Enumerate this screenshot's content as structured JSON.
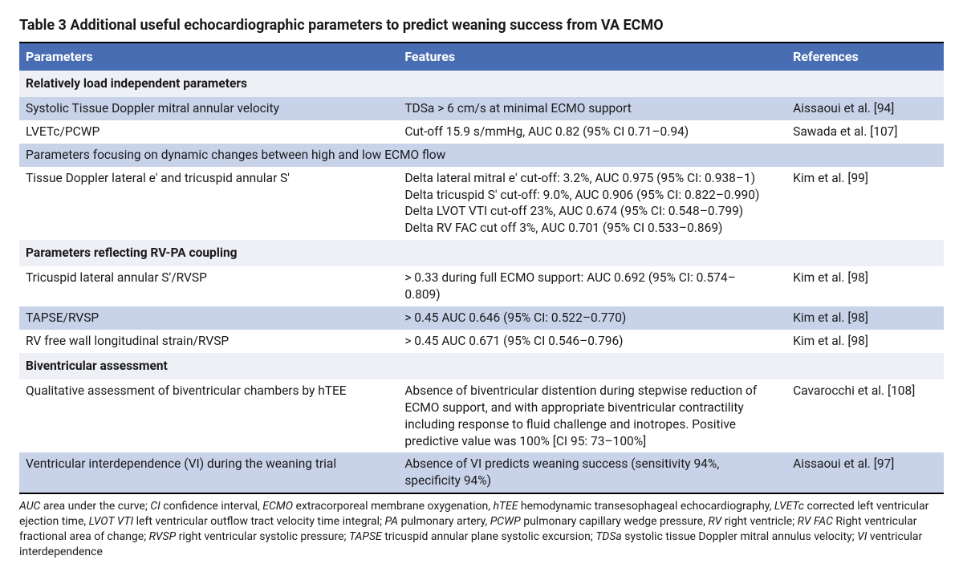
{
  "title": "Table 3  Additional useful echocardiographic parameters to predict weaning success from VA ECMO",
  "columns": {
    "parameters": "Parameters",
    "features": "Features",
    "references": "References"
  },
  "colors": {
    "header_bg": "#486db3",
    "header_fg": "#ffffff",
    "shade_bg": "#c8d3ea",
    "section_bg": "#eef0f6",
    "rule": "#000000",
    "text": "#1a1a1a"
  },
  "typography": {
    "title_fontsize_pt": 14,
    "header_fontsize_pt": 12,
    "body_fontsize_pt": 12,
    "footnote_fontsize_pt": 11,
    "title_weight": 700,
    "section_weight": 700,
    "body_weight": 400
  },
  "col_widths_pct": [
    41,
    42,
    17
  ],
  "sections": {
    "s1": "Relatively load independent parameters",
    "s1_sub": "Parameters focusing on dynamic changes between high and low ECMO flow",
    "s2": "Parameters reflecting RV-PA coupling",
    "s3": "Biventricular assessment"
  },
  "rows": {
    "r1": {
      "param": "Systolic Tissue Doppler mitral annular velocity",
      "feat": "TDSa > 6 cm/s at minimal ECMO support",
      "ref": "Aissaoui et al. [94]"
    },
    "r2": {
      "param": "LVETc/PCWP",
      "feat": "Cut-off 15.9 s/mmHg, AUC 0.82 (95% CI 0.71–0.94)",
      "ref": "Sawada et al. [107]"
    },
    "r3": {
      "param": "Tissue Doppler lateral e′ and tricuspid annular S′",
      "feat1": "Delta lateral mitral e′ cut-off: 3.2%, AUC 0.975 (95% CI: 0.938–1)",
      "feat2": "Delta tricuspid S′ cut-off: 9.0%, AUC 0.906 (95% CI: 0.822–0.990)",
      "feat3": "Delta LVOT VTI cut-off 23%, AUC 0.674 (95% CI: 0.548–0.799)",
      "feat4": "Delta RV FAC cut off 3%, AUC 0.701 (95% CI 0.533–0.869)",
      "ref": "Kim et al. [99]"
    },
    "r4": {
      "param": "Tricuspid lateral annular S′/RVSP",
      "feat": "> 0.33 during full ECMO support: AUC 0.692 (95% CI: 0.574–0.809)",
      "ref": "Kim et al. [98]"
    },
    "r5": {
      "param": "TAPSE/RVSP",
      "feat": "> 0.45 AUC 0.646 (95% CI: 0.522–0.770)",
      "ref": "Kim et al. [98]"
    },
    "r6": {
      "param": "RV free wall longitudinal strain/RVSP",
      "feat": "> 0.45 AUC 0.671 (95% CI 0.546–0.796)",
      "ref": "Kim et al. [98]"
    },
    "r7": {
      "param": "Qualitative assessment of biventricular chambers by hTEE",
      "feat": "Absence of biventricular distention during stepwise reduction of ECMO support, and with appropriate biventricular contractility including response to fluid challenge and inotropes. Positive predictive value was 100% [CI 95: 73–100%]",
      "ref": "Cavarocchi et al. [108]"
    },
    "r8": {
      "param": "Ventricular interdependence (VI) during the weaning trial",
      "feat": "Absence of VI predicts weaning success (sensitivity 94%, specificity 94%)",
      "ref": "Aissaoui et al. [97]"
    }
  },
  "footnote": {
    "items": [
      {
        "abbr": "AUC",
        "def": "area under the curve"
      },
      {
        "abbr": "CI",
        "def": "confidence interval"
      },
      {
        "abbr": "ECMO",
        "def": "extracorporeal membrane oxygenation"
      },
      {
        "abbr": "hTEE",
        "def": "hemodynamic transesophageal echocardiography"
      },
      {
        "abbr": "LVETc",
        "def": "corrected left ventricular ejection time"
      },
      {
        "abbr": "LVOT VTI",
        "def": "left ventricular outflow tract velocity time integral"
      },
      {
        "abbr": "PA",
        "def": "pulmonary artery"
      },
      {
        "abbr": "PCWP",
        "def": "pulmonary capillary wedge pressure"
      },
      {
        "abbr": "RV",
        "def": "right ventricle"
      },
      {
        "abbr": "RV FAC",
        "def": "Right ventricular fractional area of change"
      },
      {
        "abbr": "RVSP",
        "def": "right ventricular systolic pressure"
      },
      {
        "abbr": "TAPSE",
        "def": "tricuspid annular plane systolic excursion"
      },
      {
        "abbr": "TDSa",
        "def": "systolic tissue Doppler mitral annulus velocity"
      },
      {
        "abbr": "VI",
        "def": "ventricular interdependence"
      }
    ]
  }
}
